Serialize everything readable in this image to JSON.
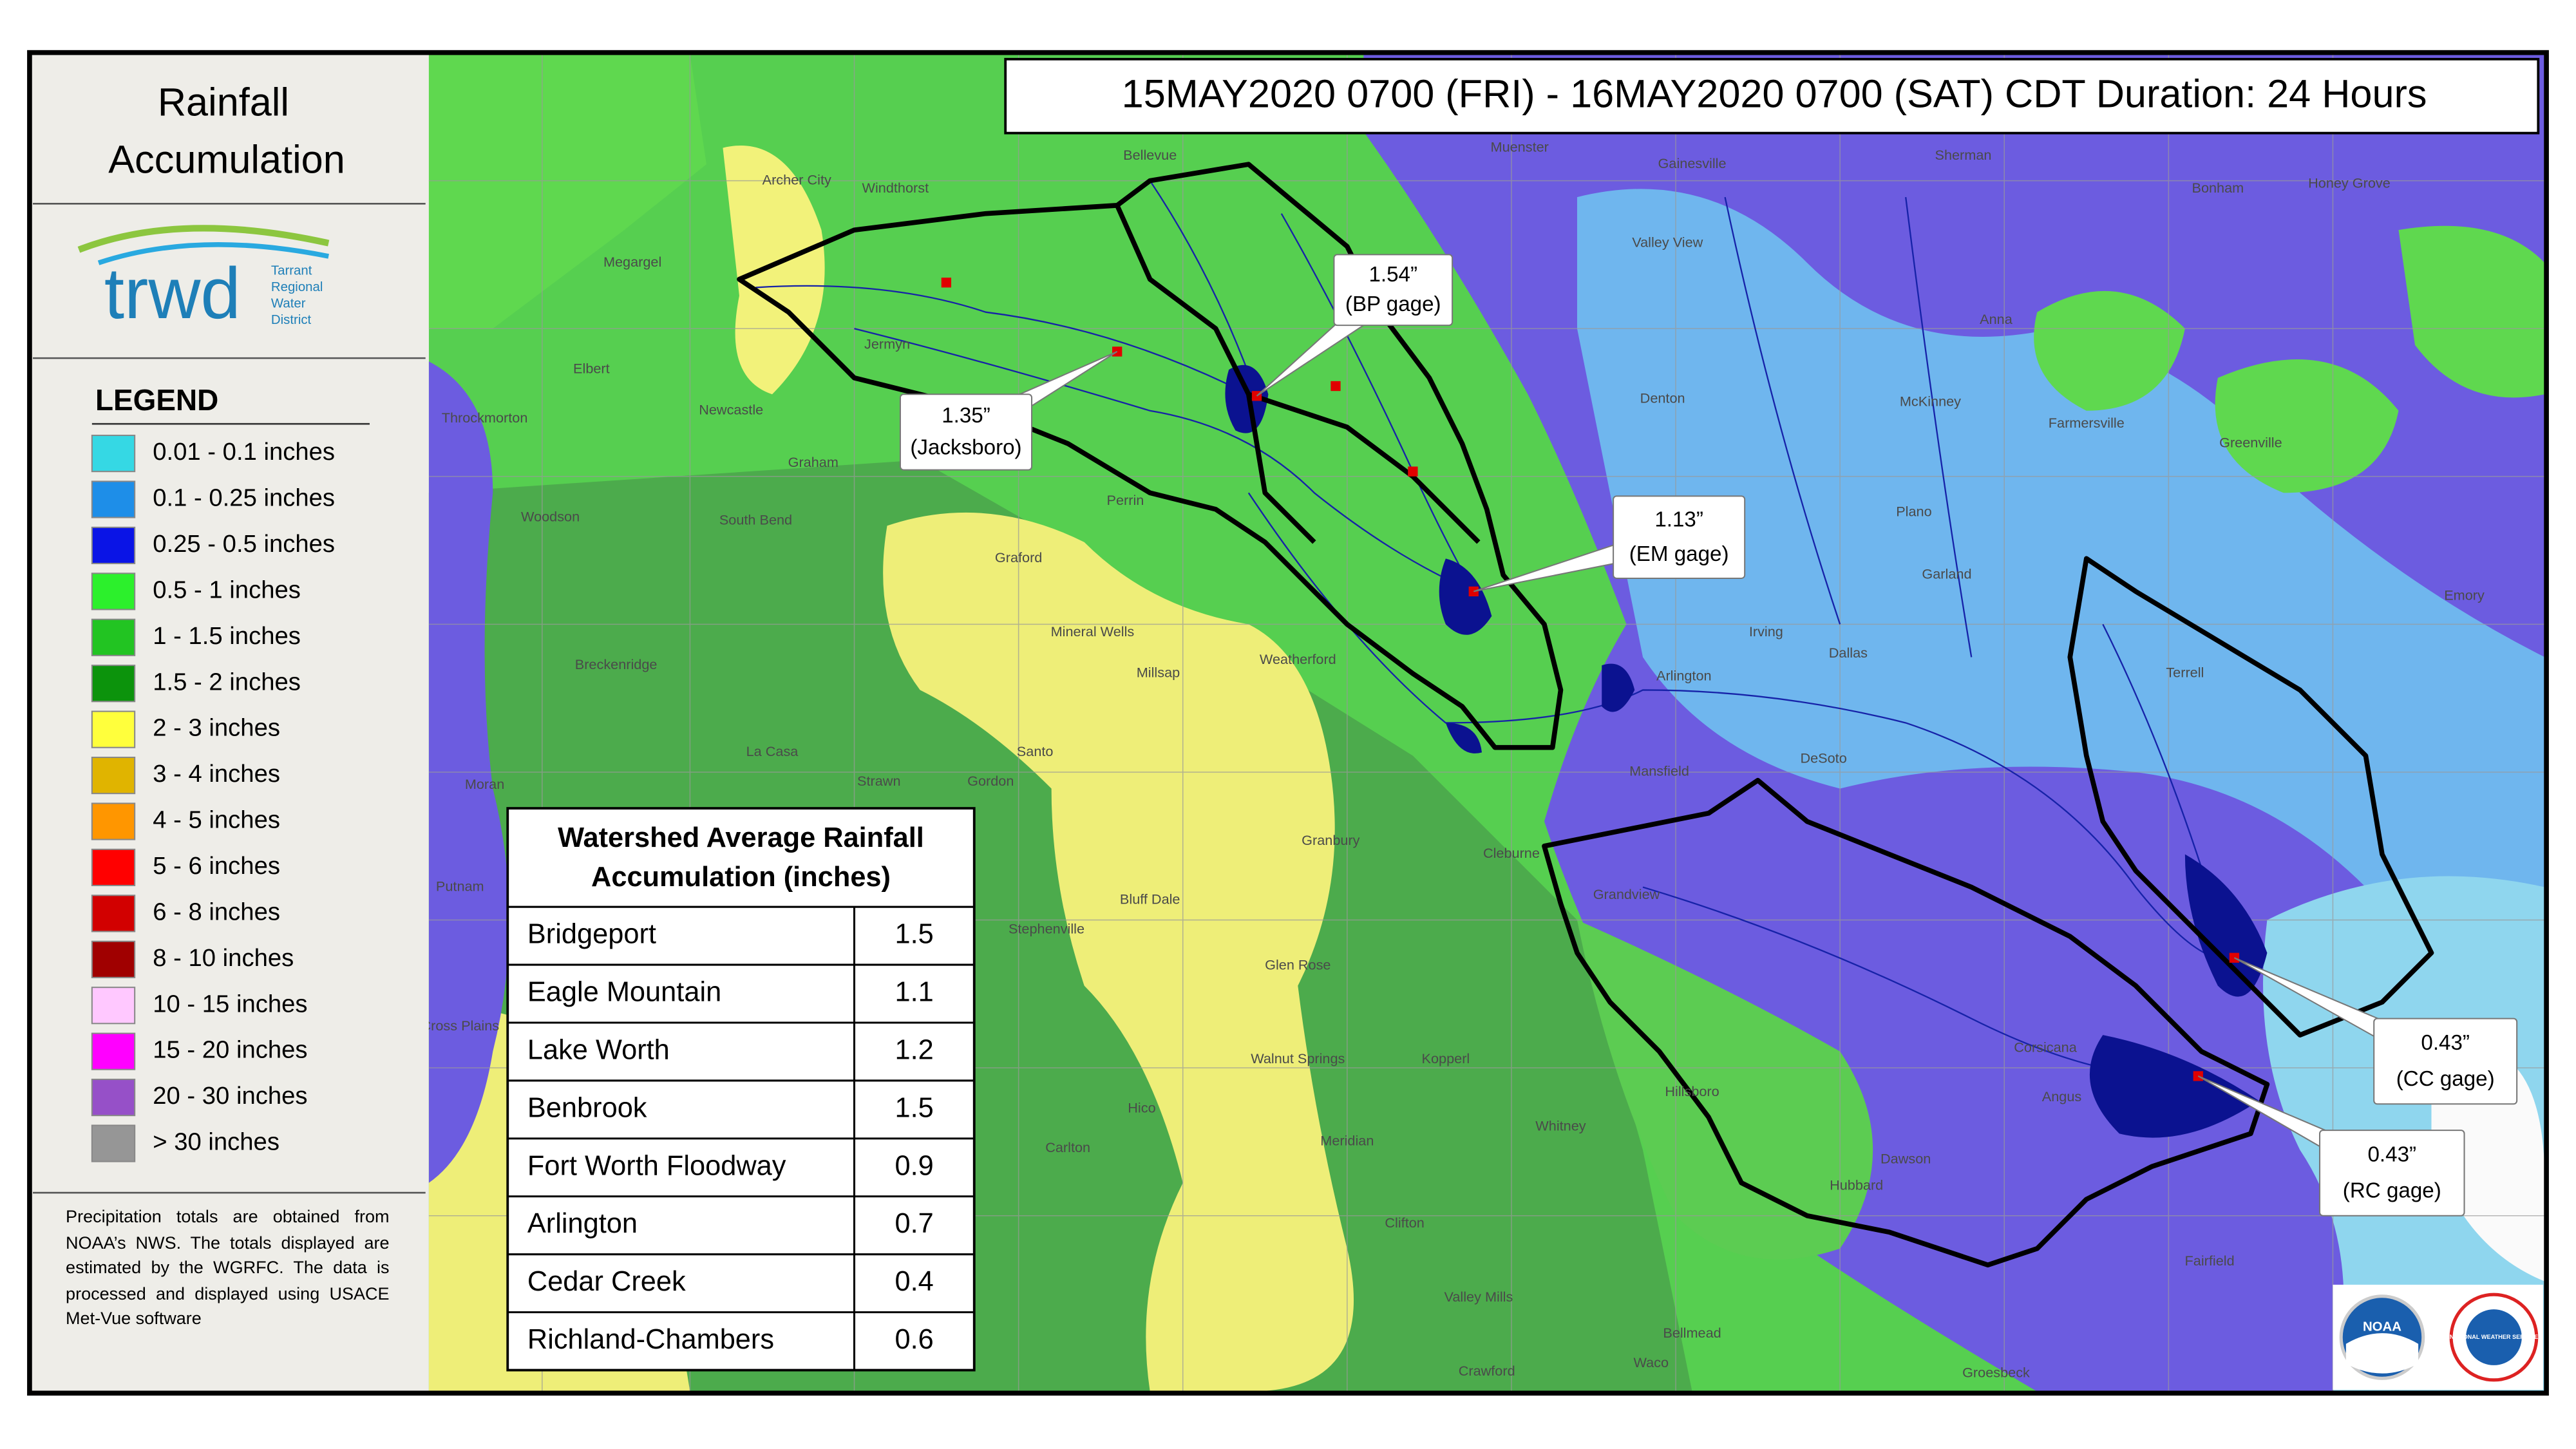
{
  "panel": {
    "title_lines": [
      "Rainfall",
      "Accumulation"
    ],
    "logo": {
      "name": "trwd",
      "tagline": [
        "Tarrant",
        "Regional",
        "Water",
        "District"
      ]
    },
    "legend": {
      "title": "LEGEND",
      "items": [
        {
          "label": "0.01 - 0.1 inches",
          "color": "#35d8e4"
        },
        {
          "label": "0.1 - 0.25 inches",
          "color": "#1e8ee8"
        },
        {
          "label": "0.25 - 0.5 inches",
          "color": "#0a14e6"
        },
        {
          "label": "0.5 - 1 inches",
          "color": "#2cf02c"
        },
        {
          "label": "1 - 1.5 inches",
          "color": "#22c422"
        },
        {
          "label": "1.5 - 2 inches",
          "color": "#0c930c"
        },
        {
          "label": "2 - 3 inches",
          "color": "#ffff3c"
        },
        {
          "label": "3 - 4 inches",
          "color": "#e0b400"
        },
        {
          "label": "4 - 5 inches",
          "color": "#ff9600"
        },
        {
          "label": "5 - 6 inches",
          "color": "#ff0000"
        },
        {
          "label": "6 - 8 inches",
          "color": "#d20000"
        },
        {
          "label": "8 - 10 inches",
          "color": "#a00000"
        },
        {
          "label": "10 - 15 inches",
          "color": "#ffc8ff"
        },
        {
          "label": "15 - 20 inches",
          "color": "#ff00ff"
        },
        {
          "label": "20 - 30 inches",
          "color": "#9650c8"
        },
        {
          "label": "> 30 inches",
          "color": "#969696"
        }
      ]
    },
    "footnote": "Precipitation totals are obtained from NOAA’s NWS. The totals displayed are estimated by the WGRFC. The data is processed and displayed using USACE Met-Vue software"
  },
  "map": {
    "header": "15MAY2020 0700 (FRI) - 16MAY2020 0700 (SAT) CDT Duration: 24 Hours",
    "callouts": [
      {
        "value": "1.54”",
        "label": "(BP gage)"
      },
      {
        "value": "1.35”",
        "label": "(Jacksboro)"
      },
      {
        "value": "1.13”",
        "label": "(EM gage)"
      },
      {
        "value": "0.43”",
        "label": "(CC gage)"
      },
      {
        "value": "0.43”",
        "label": "(RC gage)"
      }
    ],
    "places": [
      "Archer City",
      "Windthorst",
      "Bellevue",
      "Muenster",
      "Gainesville",
      "Sherman",
      "Bonham",
      "Honey Grove",
      "Megargel",
      "Jermyn",
      "Elbert",
      "Newcastle",
      "Graham",
      "Throckmorton",
      "Woodson",
      "South Bend",
      "Perrin",
      "Graford",
      "Mineral Wells",
      "Millsap",
      "Weatherford",
      "Breckenridge",
      "Valley View",
      "Denton",
      "Anna",
      "McKinney",
      "Farmersville",
      "Greenville",
      "Plano",
      "Garland",
      "Irving",
      "Dallas",
      "Arlington",
      "Mansfield",
      "DeSoto",
      "Terrell",
      "Emory",
      "Grandview",
      "Corsicana",
      "Waco",
      "Hillsboro",
      "Whitney",
      "Glen Rose",
      "Granbury",
      "Cleburne",
      "Stephenville",
      "Moran",
      "La Casa",
      "Strawn",
      "Gordon",
      "Santo",
      "Bluff Dale",
      "Putnam",
      "Cross Plains",
      "Hico",
      "Meridian",
      "Clifton",
      "Walnut Springs",
      "Kopperl",
      "Valley Mills",
      "Crawford",
      "Hubbard",
      "Dawson",
      "Angus",
      "Fairfield",
      "Groesbeck",
      "Bellmead",
      "Carlton"
    ]
  },
  "table": {
    "title_lines": [
      "Watershed Average Rainfall",
      "Accumulation (inches)"
    ],
    "rows": [
      [
        "Bridgeport",
        1.5
      ],
      [
        "Eagle Mountain",
        1.1
      ],
      [
        "Lake Worth",
        1.2
      ],
      [
        "Benbrook",
        1.5
      ],
      [
        "Fort Worth Floodway",
        0.9
      ],
      [
        "Arlington",
        0.7
      ],
      [
        "Cedar Creek",
        0.4
      ],
      [
        "Richland-Chambers",
        0.6
      ]
    ]
  },
  "logos": [
    "NOAA",
    "NATIONAL WEATHER SERVICE"
  ]
}
